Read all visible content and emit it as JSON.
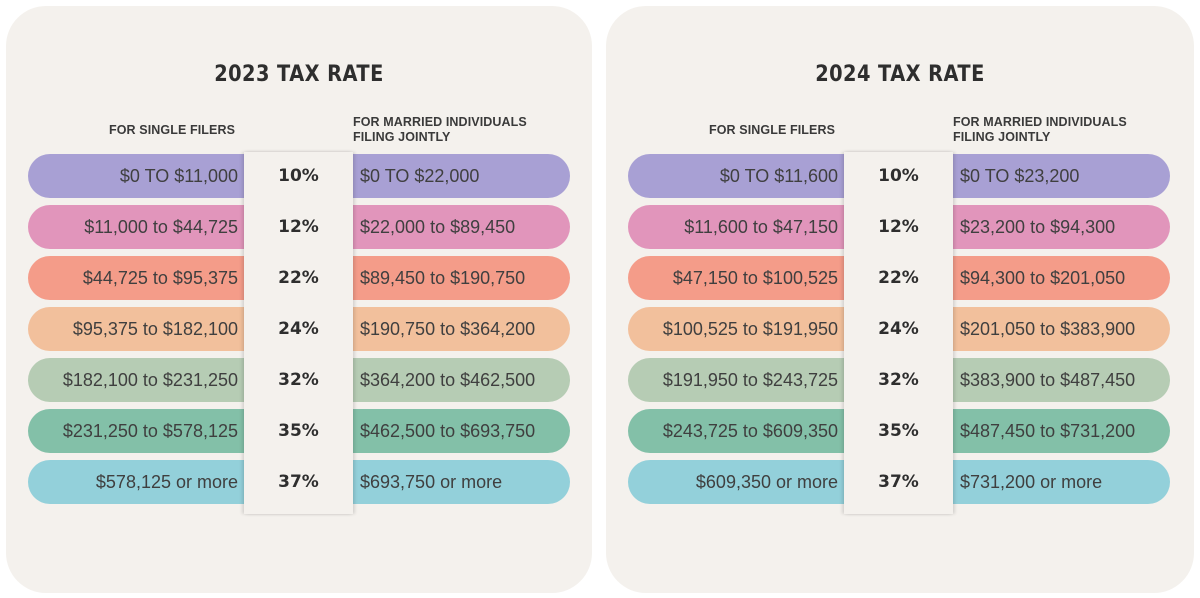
{
  "tables": [
    {
      "title": "2023 TAX RATE",
      "single_header": "FOR SINGLE FILERS",
      "married_header_line1": "FOR MARRIED INDIVIDUALS",
      "married_header_line2": "FILING JOINTLY",
      "rows": [
        {
          "single": "$0 TO $11,000",
          "rate": "10%",
          "married": "$0 TO $22,000",
          "color": "#a8a0d4"
        },
        {
          "single": "$11,000 to $44,725",
          "rate": "12%",
          "married": "$22,000 to $89,450",
          "color": "#e195bb"
        },
        {
          "single": "$44,725 to $95,375",
          "rate": "22%",
          "married": "$89,450 to $190,750",
          "color": "#f49c89"
        },
        {
          "single": "$95,375 to $182,100",
          "rate": "24%",
          "married": "$190,750 to $364,200",
          "color": "#f2c09c"
        },
        {
          "single": "$182,100 to $231,250",
          "rate": "32%",
          "married": "$364,200 to $462,500",
          "color": "#b6ccb4"
        },
        {
          "single": "$231,250 to $578,125",
          "rate": "35%",
          "married": "$462,500 to $693,750",
          "color": "#83c0a8"
        },
        {
          "single": "$578,125 or more",
          "rate": "37%",
          "married": "$693,750 or more",
          "color": "#93d0da"
        }
      ]
    },
    {
      "title": "2024 TAX RATE",
      "single_header": "FOR SINGLE FILERS",
      "married_header_line1": "FOR MARRIED INDIVIDUALS",
      "married_header_line2": "FILING JOINTLY",
      "rows": [
        {
          "single": "$0 TO $11,600",
          "rate": "10%",
          "married": "$0 TO $23,200",
          "color": "#a8a0d4"
        },
        {
          "single": "$11,600 to $47,150",
          "rate": "12%",
          "married": "$23,200 to $94,300",
          "color": "#e195bb"
        },
        {
          "single": "$47,150 to $100,525",
          "rate": "22%",
          "married": "$94,300 to $201,050",
          "color": "#f49c89"
        },
        {
          "single": "$100,525 to $191,950",
          "rate": "24%",
          "married": "$201,050 to $383,900",
          "color": "#f2c09c"
        },
        {
          "single": "$191,950 to $243,725",
          "rate": "32%",
          "married": "$383,900 to $487,450",
          "color": "#b6ccb4"
        },
        {
          "single": "$243,725 to $609,350",
          "rate": "35%",
          "married": "$487,450 to $731,200",
          "color": "#83c0a8"
        },
        {
          "single": "$609,350 or more",
          "rate": "37%",
          "married": "$731,200 or more",
          "color": "#93d0da"
        }
      ]
    }
  ]
}
